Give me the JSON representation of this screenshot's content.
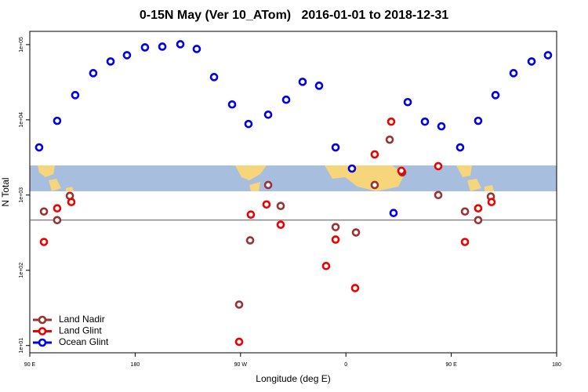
{
  "chart_data": {
    "type": "scatter",
    "title": "0-15N May (Ver 10_ATom)   2016-01-01 to 2018-12-31",
    "x_label": "Longitude (deg E)",
    "y_label": "N Total",
    "xlim": [
      90,
      540
    ],
    "ylim": [
      8,
      150000
    ],
    "log_y": true,
    "legend": "bottom-left",
    "hline": 464,
    "xticks": [
      {
        "value": 90,
        "label": "90 E"
      },
      {
        "value": 180,
        "label": "180"
      },
      {
        "value": 270,
        "label": "90 W"
      },
      {
        "value": 360,
        "label": "0"
      },
      {
        "value": 450,
        "label": "90 E"
      },
      {
        "value": 540,
        "label": "180"
      }
    ],
    "yticks": [
      {
        "value": 10,
        "label": "1e+01"
      },
      {
        "value": 100,
        "label": "1e+02"
      },
      {
        "value": 1000,
        "label": "1e+03"
      },
      {
        "value": 10000,
        "label": "1e+04"
      },
      {
        "value": 100000,
        "label": "1e+05"
      }
    ],
    "series": [
      {
        "name": "Land Nadir",
        "color": "#993333",
        "x": [
          102.1,
          113.4,
          124.2,
          268.8,
          278.2,
          293.6,
          304.3,
          351.2,
          368.6,
          384.6,
          397.4,
          408.1,
          438.9,
          461.7,
          473.0,
          483.8
        ],
        "values": [
          605,
          464,
          976,
          35,
          250,
          1360,
          716,
          375,
          318,
          1360,
          5450,
          2000,
          1000,
          605,
          464,
          955
        ]
      },
      {
        "name": "Land Glint",
        "color": "#ee0000",
        "x": [
          102.1,
          113.4,
          125.5,
          268.8,
          278.8,
          292.2,
          304.3,
          351.2,
          343.1,
          367.9,
          384.6,
          398.7,
          407.4,
          438.9,
          461.7,
          473.0,
          484.4
        ],
        "values": [
          238,
          666,
          807,
          11.2,
          550,
          750,
          403,
          256,
          114,
          58,
          3470,
          9460,
          2100,
          2420,
          238,
          666,
          807
        ]
      },
      {
        "name": "Ocean Glint",
        "color": "#0000ee",
        "x": [
          98.0,
          113.4,
          128.8,
          144.2,
          159.0,
          173.0,
          188.4,
          203.2,
          218.6,
          232.6,
          247.4,
          262.8,
          276.8,
          293.6,
          309.0,
          323.0,
          337.1,
          351.2,
          365.2,
          400.7,
          412.8,
          427.5,
          441.6,
          457.6,
          473.0,
          487.8,
          503.2,
          518.6,
          532.6
        ],
        "values": [
          4300,
          9700,
          21300,
          41700,
          59700,
          72300,
          91800,
          94000,
          101000,
          87500,
          37000,
          16000,
          8800,
          11700,
          18500,
          32000,
          28400,
          4300,
          2250,
          577,
          17200,
          9460,
          8200,
          4300,
          9700,
          21300,
          41700,
          59700,
          72300
        ]
      }
    ]
  }
}
